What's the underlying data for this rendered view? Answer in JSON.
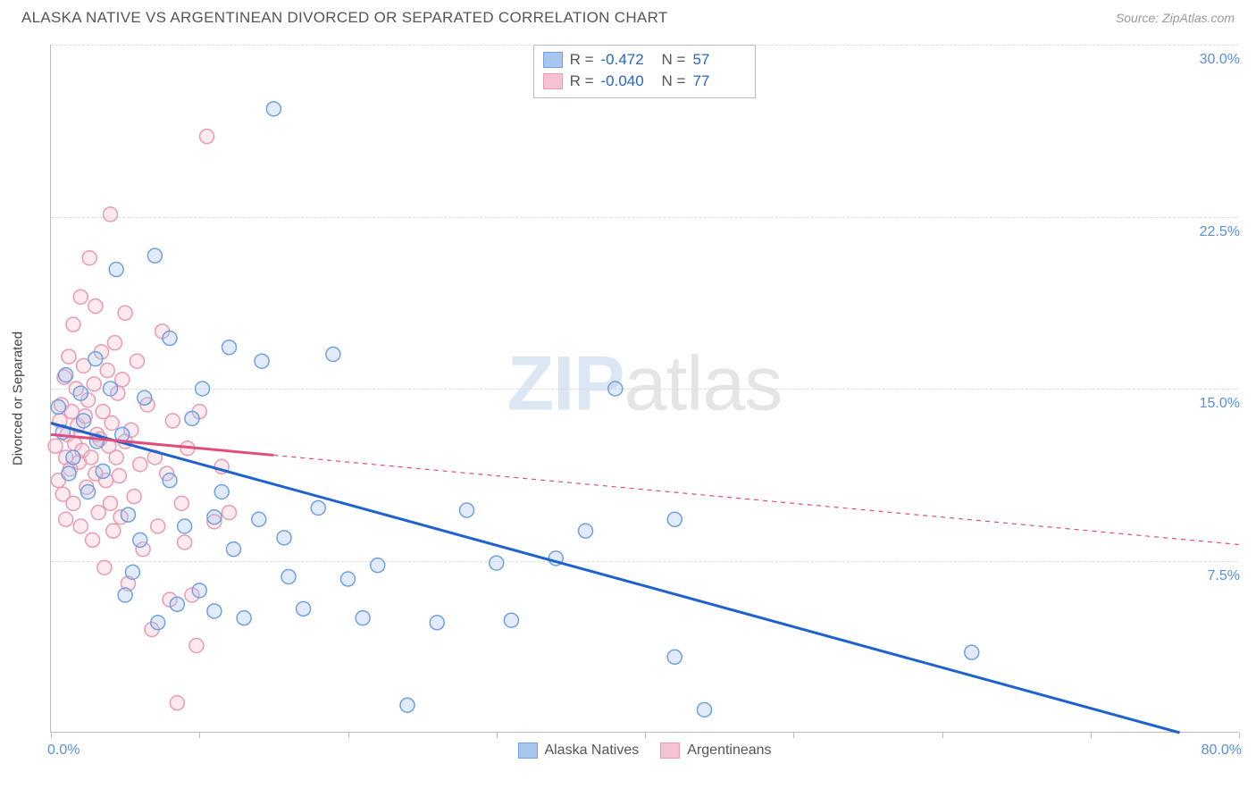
{
  "header": {
    "title": "ALASKA NATIVE VS ARGENTINEAN DIVORCED OR SEPARATED CORRELATION CHART",
    "source": "Source: ZipAtlas.com"
  },
  "watermark": {
    "part1": "ZIP",
    "part2": "atlas"
  },
  "chart": {
    "type": "scatter",
    "background_color": "#ffffff",
    "grid_color": "#dddddd",
    "axis_color": "#bbbbbb",
    "tick_label_color": "#5b8fd6",
    "xlabel": "",
    "ylabel": "Divorced or Separated",
    "ylabel_fontsize": 15,
    "tick_fontsize": 16,
    "xlim": [
      0,
      80
    ],
    "ylim": [
      0,
      30
    ],
    "xticks": [
      0,
      10,
      20,
      30,
      40,
      50,
      60,
      70,
      80
    ],
    "xtick_labels_shown": {
      "0": "0.0%",
      "80": "80.0%"
    },
    "yticks": [
      7.5,
      15.0,
      22.5,
      30.0
    ],
    "ytick_labels": [
      "7.5%",
      "15.0%",
      "22.5%",
      "30.0%"
    ],
    "marker_radius": 8,
    "marker_stroke_width": 1.5,
    "marker_fill_opacity": 0.35,
    "trend_line_width_solid": 3,
    "trend_line_width_dashed": 1.2,
    "series": [
      {
        "name": "Alaska Natives",
        "color_stroke": "#6fa0e0",
        "color_fill": "#a9c6ee",
        "trend_color": "#1e62d0",
        "trend_style": "solid",
        "trend_dashed_color": "#1e62d0",
        "R": "-0.472",
        "N": "57",
        "trend": {
          "x1": 0,
          "y1": 13.5,
          "x2": 76,
          "y2": 0
        },
        "trend_solid_extent": {
          "x1": 0,
          "x2": 76
        },
        "points": [
          [
            0.5,
            14.2
          ],
          [
            0.8,
            13.1
          ],
          [
            1.0,
            15.6
          ],
          [
            1.2,
            11.3
          ],
          [
            1.5,
            12.0
          ],
          [
            2.0,
            14.8
          ],
          [
            2.2,
            13.6
          ],
          [
            2.5,
            10.5
          ],
          [
            3.0,
            16.3
          ],
          [
            3.1,
            12.7
          ],
          [
            3.5,
            11.4
          ],
          [
            4.0,
            15.0
          ],
          [
            4.4,
            20.2
          ],
          [
            4.8,
            13.0
          ],
          [
            5.0,
            6.0
          ],
          [
            5.2,
            9.5
          ],
          [
            5.5,
            7.0
          ],
          [
            6.0,
            8.4
          ],
          [
            6.3,
            14.6
          ],
          [
            7.0,
            20.8
          ],
          [
            7.2,
            4.8
          ],
          [
            8.0,
            11.0
          ],
          [
            8.0,
            17.2
          ],
          [
            8.5,
            5.6
          ],
          [
            9.0,
            9.0
          ],
          [
            9.5,
            13.7
          ],
          [
            10.0,
            6.2
          ],
          [
            10.2,
            15.0
          ],
          [
            11.0,
            9.4
          ],
          [
            11.0,
            5.3
          ],
          [
            11.5,
            10.5
          ],
          [
            12.0,
            16.8
          ],
          [
            12.3,
            8.0
          ],
          [
            13.0,
            5.0
          ],
          [
            14.0,
            9.3
          ],
          [
            14.2,
            16.2
          ],
          [
            15.0,
            27.2
          ],
          [
            15.7,
            8.5
          ],
          [
            16.0,
            6.8
          ],
          [
            17.0,
            5.4
          ],
          [
            18.0,
            9.8
          ],
          [
            19.0,
            16.5
          ],
          [
            20.0,
            6.7
          ],
          [
            21.0,
            5.0
          ],
          [
            22.0,
            7.3
          ],
          [
            24.0,
            1.2
          ],
          [
            26.0,
            4.8
          ],
          [
            28.0,
            9.7
          ],
          [
            30.0,
            7.4
          ],
          [
            31.0,
            4.9
          ],
          [
            34.0,
            7.6
          ],
          [
            36.0,
            8.8
          ],
          [
            38.0,
            15.0
          ],
          [
            42.0,
            3.3
          ],
          [
            44.0,
            1.0
          ],
          [
            62.0,
            3.5
          ],
          [
            42.0,
            9.3
          ]
        ]
      },
      {
        "name": "Argentineans",
        "color_stroke": "#e89ab2",
        "color_fill": "#f5c2d1",
        "trend_color": "#e04d7a",
        "trend_style": "dashed_after_solid",
        "R": "-0.040",
        "N": "77",
        "trend": {
          "x1": 0,
          "y1": 13.0,
          "x2": 80,
          "y2": 8.2
        },
        "trend_solid_extent": {
          "x1": 0,
          "x2": 15
        },
        "points": [
          [
            0.3,
            12.5
          ],
          [
            0.5,
            11.0
          ],
          [
            0.6,
            13.6
          ],
          [
            0.7,
            14.3
          ],
          [
            0.8,
            10.4
          ],
          [
            0.9,
            15.5
          ],
          [
            1.0,
            12.0
          ],
          [
            1.0,
            9.3
          ],
          [
            1.1,
            13.0
          ],
          [
            1.2,
            16.4
          ],
          [
            1.3,
            11.5
          ],
          [
            1.4,
            14.0
          ],
          [
            1.5,
            17.8
          ],
          [
            1.5,
            10.0
          ],
          [
            1.6,
            12.6
          ],
          [
            1.7,
            15.0
          ],
          [
            1.8,
            13.4
          ],
          [
            1.9,
            11.8
          ],
          [
            2.0,
            19.0
          ],
          [
            2.0,
            9.0
          ],
          [
            2.1,
            12.3
          ],
          [
            2.2,
            16.0
          ],
          [
            2.3,
            13.8
          ],
          [
            2.4,
            10.7
          ],
          [
            2.5,
            14.5
          ],
          [
            2.6,
            20.7
          ],
          [
            2.7,
            12.0
          ],
          [
            2.8,
            8.4
          ],
          [
            2.9,
            15.2
          ],
          [
            3.0,
            11.3
          ],
          [
            3.0,
            18.6
          ],
          [
            3.1,
            13.0
          ],
          [
            3.2,
            9.6
          ],
          [
            3.3,
            12.8
          ],
          [
            3.4,
            16.6
          ],
          [
            3.5,
            14.0
          ],
          [
            3.6,
            7.2
          ],
          [
            3.7,
            11.0
          ],
          [
            3.8,
            15.8
          ],
          [
            3.9,
            12.5
          ],
          [
            4.0,
            22.6
          ],
          [
            4.0,
            10.0
          ],
          [
            4.1,
            13.5
          ],
          [
            4.2,
            8.8
          ],
          [
            4.3,
            17.0
          ],
          [
            4.4,
            12.0
          ],
          [
            4.5,
            14.8
          ],
          [
            4.6,
            11.2
          ],
          [
            4.7,
            9.4
          ],
          [
            4.8,
            15.4
          ],
          [
            5.0,
            18.3
          ],
          [
            5.0,
            12.7
          ],
          [
            5.2,
            6.5
          ],
          [
            5.4,
            13.2
          ],
          [
            5.6,
            10.3
          ],
          [
            5.8,
            16.2
          ],
          [
            6.0,
            11.7
          ],
          [
            6.2,
            8.0
          ],
          [
            6.5,
            14.3
          ],
          [
            6.8,
            4.5
          ],
          [
            7.0,
            12.0
          ],
          [
            7.2,
            9.0
          ],
          [
            7.5,
            17.5
          ],
          [
            7.8,
            11.3
          ],
          [
            8.0,
            5.8
          ],
          [
            8.2,
            13.6
          ],
          [
            8.5,
            1.3
          ],
          [
            8.8,
            10.0
          ],
          [
            9.0,
            8.3
          ],
          [
            9.2,
            12.4
          ],
          [
            9.5,
            6.0
          ],
          [
            9.8,
            3.8
          ],
          [
            10.0,
            14.0
          ],
          [
            10.5,
            26.0
          ],
          [
            11.0,
            9.2
          ],
          [
            11.5,
            11.6
          ],
          [
            12.0,
            9.6
          ]
        ]
      }
    ],
    "stats_legend_fontsize": 17,
    "series_legend_fontsize": 16
  }
}
